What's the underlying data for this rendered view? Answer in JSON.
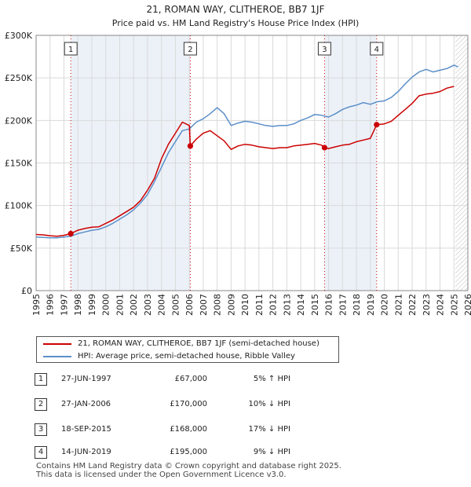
{
  "chart_data": {
    "type": "line",
    "title": "21, ROMAN WAY, CLITHEROE, BB7 1JF",
    "subtitle": "Price paid vs. HM Land Registry's House Price Index (HPI)",
    "xlim": [
      1995,
      2026
    ],
    "ylim": [
      0,
      300000
    ],
    "x_ticks": [
      1995,
      1996,
      1997,
      1998,
      1999,
      2000,
      2001,
      2002,
      2003,
      2004,
      2005,
      2006,
      2007,
      2008,
      2009,
      2010,
      2011,
      2012,
      2013,
      2014,
      2015,
      2016,
      2017,
      2018,
      2019,
      2020,
      2021,
      2022,
      2023,
      2024,
      2025,
      2026
    ],
    "y_ticks": [
      0,
      50000,
      100000,
      150000,
      200000,
      250000,
      300000
    ],
    "y_tick_labels": [
      "£0",
      "£50K",
      "£100K",
      "£150K",
      "£200K",
      "£250K",
      "£300K"
    ],
    "grid": true,
    "forecast_start": 2025.1,
    "colors": {
      "property": "#cc0000",
      "hpi": "#5b8fc9",
      "marker_line": "#cc0000",
      "shade": "#dde6f2"
    },
    "series": [
      {
        "name": "21, ROMAN WAY, CLITHEROE, BB7 1JF (semi-detached house)",
        "x": [
          1995.0,
          1995.5,
          1996.0,
          1996.5,
          1997.0,
          1997.49,
          1998.0,
          1998.5,
          1999.0,
          1999.5,
          2000.0,
          2000.5,
          2001.0,
          2001.5,
          2002.0,
          2002.5,
          2003.0,
          2003.5,
          2004.0,
          2004.5,
          2005.0,
          2005.5,
          2006.0,
          2006.07,
          2006.5,
          2007.0,
          2007.5,
          2008.0,
          2008.5,
          2009.0,
          2009.5,
          2010.0,
          2010.5,
          2011.0,
          2011.5,
          2012.0,
          2012.5,
          2013.0,
          2013.5,
          2014.0,
          2014.5,
          2015.0,
          2015.5,
          2015.71,
          2016.0,
          2016.5,
          2017.0,
          2017.5,
          2018.0,
          2018.5,
          2019.0,
          2019.45,
          2019.5,
          2020.0,
          2020.5,
          2021.0,
          2021.5,
          2022.0,
          2022.5,
          2023.0,
          2023.5,
          2024.0,
          2024.5,
          2025.0
        ],
        "values": [
          66000,
          65500,
          64500,
          64000,
          65000,
          67000,
          71000,
          73000,
          74500,
          75000,
          79000,
          83000,
          88000,
          93000,
          98000,
          106000,
          118000,
          132000,
          155000,
          172000,
          185000,
          198000,
          194000,
          170000,
          178000,
          185000,
          188000,
          182000,
          176000,
          166000,
          170000,
          172000,
          171000,
          169000,
          168000,
          167000,
          168000,
          168000,
          170000,
          171000,
          172000,
          173000,
          171000,
          168000,
          167000,
          169000,
          171000,
          172000,
          175000,
          177000,
          179000,
          195000,
          195000,
          196000,
          199000,
          206000,
          213000,
          220000,
          229000,
          231000,
          232000,
          234000,
          238000,
          240000
        ]
      },
      {
        "name": "HPI: Average price, semi-detached house, Ribble Valley",
        "x": [
          1995.0,
          1995.5,
          1996.0,
          1996.5,
          1997.0,
          1997.5,
          1998.0,
          1998.5,
          1999.0,
          1999.5,
          2000.0,
          2000.5,
          2001.0,
          2001.5,
          2002.0,
          2002.5,
          2003.0,
          2003.5,
          2004.0,
          2004.5,
          2005.0,
          2005.5,
          2006.0,
          2006.5,
          2007.0,
          2007.5,
          2008.0,
          2008.5,
          2009.0,
          2009.5,
          2010.0,
          2010.5,
          2011.0,
          2011.5,
          2012.0,
          2012.5,
          2013.0,
          2013.5,
          2014.0,
          2014.5,
          2015.0,
          2015.5,
          2016.0,
          2016.5,
          2017.0,
          2017.5,
          2018.0,
          2018.5,
          2019.0,
          2019.5,
          2020.0,
          2020.5,
          2021.0,
          2021.5,
          2022.0,
          2022.5,
          2023.0,
          2023.5,
          2024.0,
          2024.5,
          2025.0,
          2025.3
        ],
        "values": [
          63000,
          62500,
          62000,
          62000,
          63000,
          64000,
          67000,
          69000,
          71000,
          72000,
          75000,
          79000,
          84000,
          89000,
          95000,
          103000,
          113000,
          128000,
          145000,
          162000,
          175000,
          188000,
          190000,
          198000,
          202000,
          208000,
          215000,
          208000,
          194000,
          197000,
          199000,
          198000,
          196000,
          194000,
          193000,
          194000,
          194000,
          196000,
          200000,
          203000,
          207000,
          206000,
          204000,
          208000,
          213000,
          216000,
          218000,
          221000,
          219000,
          222000,
          223000,
          227000,
          234000,
          243000,
          251000,
          257000,
          260000,
          257000,
          259000,
          261000,
          265000,
          263000
        ]
      }
    ],
    "sale_markers": [
      {
        "label": "1",
        "x": 1997.49,
        "value": 67000
      },
      {
        "label": "2",
        "x": 2006.07,
        "value": 170000
      },
      {
        "label": "3",
        "x": 2015.71,
        "value": 168000
      },
      {
        "label": "4",
        "x": 2019.45,
        "value": 195000
      }
    ]
  },
  "legend": {
    "property_label": "21, ROMAN WAY, CLITHEROE, BB7 1JF (semi-detached house)",
    "hpi_label": "HPI: Average price, semi-detached house, Ribble Valley"
  },
  "sales_table": [
    {
      "num": "1",
      "date": "27-JUN-1997",
      "price": "£67,000",
      "hpi": "5% ↑ HPI"
    },
    {
      "num": "2",
      "date": "27-JAN-2006",
      "price": "£170,000",
      "hpi": "10% ↓ HPI"
    },
    {
      "num": "3",
      "date": "18-SEP-2015",
      "price": "£168,000",
      "hpi": "17% ↓ HPI"
    },
    {
      "num": "4",
      "date": "14-JUN-2019",
      "price": "£195,000",
      "hpi": "9% ↓ HPI"
    }
  ],
  "footer": {
    "line1": "Contains HM Land Registry data © Crown copyright and database right 2025.",
    "line2": "This data is licensed under the Open Government Licence v3.0."
  }
}
